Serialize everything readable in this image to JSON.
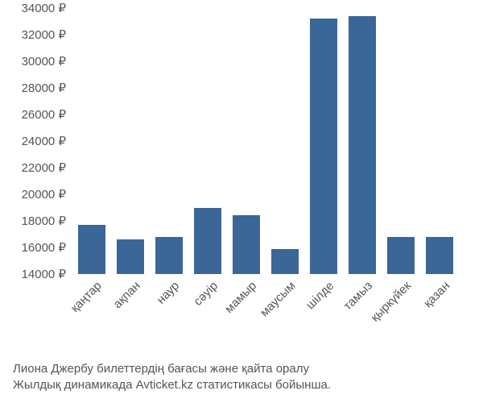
{
  "chart": {
    "type": "bar",
    "background_color": "#ffffff",
    "bar_color": "#3a6698",
    "text_color": "#555555",
    "font_family": "Arial, Helvetica, sans-serif",
    "axis_fontsize": 15,
    "caption_fontsize": 15,
    "ylim": [
      14000,
      34000
    ],
    "ytick_step": 2000,
    "currency_suffix": " ₽",
    "bar_width": 0.7,
    "categories": [
      "қаңтар",
      "ақпан",
      "наур",
      "сәуір",
      "мамыр",
      "маусым",
      "шілде",
      "тамыз",
      "қыркүйек",
      "қазан"
    ],
    "values": [
      17700,
      16600,
      16800,
      19000,
      18400,
      15900,
      33200,
      33400,
      16800,
      16800
    ],
    "yticks": [
      {
        "value": 34000,
        "label": "34000 ₽"
      },
      {
        "value": 32000,
        "label": "32000 ₽"
      },
      {
        "value": 30000,
        "label": "30000 ₽"
      },
      {
        "value": 28000,
        "label": "28000 ₽"
      },
      {
        "value": 26000,
        "label": "26000 ₽"
      },
      {
        "value": 24000,
        "label": "24000 ₽"
      },
      {
        "value": 22000,
        "label": "22000 ₽"
      },
      {
        "value": 20000,
        "label": "20000 ₽"
      },
      {
        "value": 18000,
        "label": "18000 ₽"
      },
      {
        "value": 16000,
        "label": "16000 ₽"
      },
      {
        "value": 14000,
        "label": "14000 ₽"
      }
    ]
  },
  "caption": {
    "line1": "Лиона Джербу билеттердің бағасы және қайта оралу",
    "line2": "Жылдық динамикада Avticket.kz статистикасы бойынша."
  }
}
